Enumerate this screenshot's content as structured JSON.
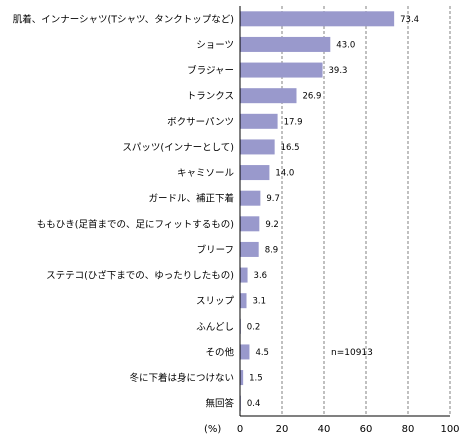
{
  "chart_data": {
    "type": "bar",
    "orientation": "horizontal",
    "categories": [
      "肌着、インナーシャツ(Tシャツ、タンクトップなど)",
      "ショーツ",
      "ブラジャー",
      "トランクス",
      "ボクサーパンツ",
      "スパッツ(インナーとして)",
      "キャミソール",
      "ガードル、補正下着",
      "ももひき(足首までの、足にフィットするもの)",
      "ブリーフ",
      "ステテコ(ひざ下までの、ゆったりしたもの)",
      "スリップ",
      "ふんどし",
      "その他",
      "冬に下着は身につけない",
      "無回答"
    ],
    "values": [
      73.4,
      43.0,
      39.3,
      26.9,
      17.9,
      16.5,
      14.0,
      9.7,
      9.2,
      8.9,
      3.6,
      3.1,
      0.2,
      4.5,
      1.5,
      0.4
    ],
    "value_labels": [
      "73.4",
      "43.0",
      "39.3",
      "26.9",
      "17.9",
      "16.5",
      "14.0",
      "9.7",
      "9.2",
      "8.9",
      "3.6",
      "3.1",
      "0.2",
      "4.5",
      "1.5",
      "0.4"
    ],
    "xlim": [
      0,
      100
    ],
    "xticks": [
      "0",
      "20",
      "40",
      "60",
      "80",
      "100"
    ],
    "xunit_label": "(%)",
    "annotation": "n=10913",
    "grid": "vertical dashed",
    "bar_color": "#9999cc"
  }
}
